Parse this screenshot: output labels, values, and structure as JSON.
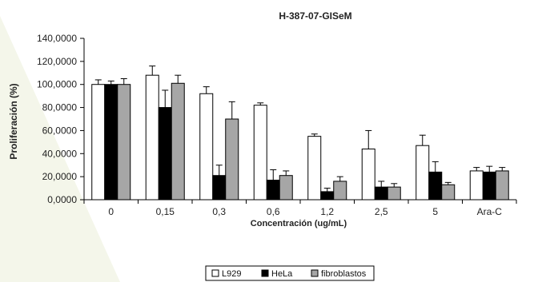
{
  "chart_data": {
    "type": "bar",
    "title": "H-387-07-GISeM",
    "xlabel": "Concentración (ug/mL)",
    "ylabel": "Proliferación (%)",
    "ylim": [
      0,
      140000
    ],
    "ytick_values": [
      0,
      20000,
      40000,
      60000,
      80000,
      100000,
      120000,
      140000
    ],
    "ytick_labels": [
      "0,0000",
      "20,0000",
      "40,0000",
      "60,0000",
      "80,0000",
      "100,0000",
      "120,0000",
      "140,0000"
    ],
    "categories": [
      "0",
      "0,15",
      "0,3",
      "0,6",
      "1,2",
      "2,5",
      "5",
      "Ara-C"
    ],
    "series": [
      {
        "name": "L929",
        "color": "#ffffff",
        "values": [
          100000,
          108000,
          92000,
          82000,
          55000,
          44000,
          47000,
          25000
        ],
        "errors": [
          4000,
          8000,
          6000,
          2000,
          2000,
          16000,
          9000,
          3000
        ]
      },
      {
        "name": "HeLa",
        "color": "#000000",
        "values": [
          100000,
          80000,
          21000,
          17000,
          7000,
          11000,
          24000,
          24000
        ],
        "errors": [
          3000,
          15000,
          9000,
          9000,
          3000,
          5000,
          9000,
          5000
        ]
      },
      {
        "name": "fibroblastos",
        "color": "#a6a6a6",
        "values": [
          100000,
          101000,
          70000,
          21000,
          16000,
          11000,
          13000,
          25000
        ],
        "errors": [
          5000,
          7000,
          15000,
          4000,
          4000,
          3000,
          2000,
          3000
        ]
      }
    ],
    "grid": false,
    "legend_position": "bottom-center"
  }
}
